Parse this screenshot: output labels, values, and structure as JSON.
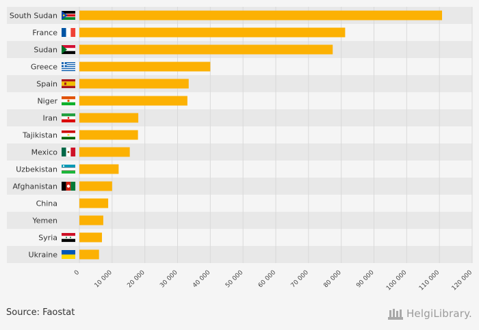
{
  "chart_data": {
    "type": "bar",
    "orientation": "horizontal",
    "categories": [
      "South Sudan",
      "France",
      "Sudan",
      "Greece",
      "Spain",
      "Niger",
      "Iran",
      "Tajikistan",
      "Mexico",
      "Uzbekistan",
      "Afghanistan",
      "China",
      "Yemen",
      "Syria",
      "Ukraine"
    ],
    "values": [
      110800,
      81200,
      77400,
      40000,
      33400,
      33000,
      18000,
      17900,
      15400,
      12000,
      10000,
      8800,
      7300,
      6900,
      6000
    ],
    "xlim": [
      0,
      120000
    ],
    "ticks": [
      0,
      10000,
      20000,
      30000,
      40000,
      50000,
      60000,
      70000,
      80000,
      90000,
      100000,
      110000,
      120000
    ],
    "tick_labels": [
      "0",
      "10 000",
      "20 000",
      "30 000",
      "40 000",
      "50 000",
      "60 000",
      "70 000",
      "80 000",
      "90 000",
      "100 000",
      "110 000",
      "120 000"
    ],
    "bar_color": "#fcb103",
    "band_color": "#e8e8e8",
    "grid": true,
    "flags": [
      "south-sudan",
      "france",
      "sudan",
      "greece",
      "spain",
      "niger",
      "iran",
      "tajikistan",
      "mexico",
      "uzbekistan",
      "afghanistan",
      "",
      "",
      "syria",
      "ukraine"
    ]
  },
  "footer": {
    "source": "Source: Faostat",
    "brand": "HelgiLibrary."
  }
}
